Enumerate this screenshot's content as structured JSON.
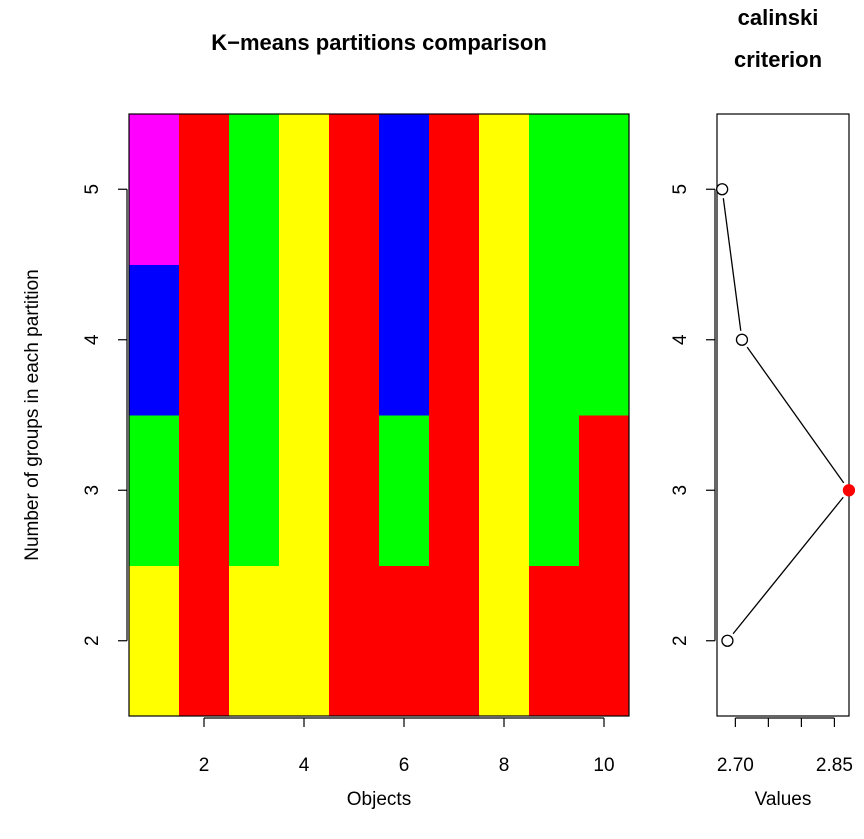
{
  "chart_data": [
    {
      "type": "heatmap",
      "title": "K−means partitions comparison",
      "xlabel": "Objects",
      "ylabel": "Number of groups in each partition",
      "x_categories": [
        1,
        2,
        3,
        4,
        5,
        6,
        7,
        8,
        9,
        10
      ],
      "y_categories": [
        2,
        3,
        4,
        5
      ],
      "x_tick_labels": [
        "2",
        "4",
        "6",
        "8",
        "10"
      ],
      "y_tick_labels": [
        "2",
        "3",
        "4",
        "5"
      ],
      "palette": {
        "1": "#FF0000",
        "2": "#FFFF00",
        "3": "#00FF00",
        "4": "#0000FF",
        "5": "#FF00FF"
      },
      "rows": [
        {
          "groups": 2,
          "values": [
            2,
            1,
            2,
            2,
            1,
            1,
            1,
            2,
            1,
            1
          ]
        },
        {
          "groups": 3,
          "values": [
            3,
            1,
            3,
            2,
            1,
            3,
            1,
            2,
            3,
            1
          ]
        },
        {
          "groups": 4,
          "values": [
            4,
            1,
            3,
            2,
            1,
            4,
            1,
            2,
            3,
            3
          ]
        },
        {
          "groups": 5,
          "values": [
            5,
            1,
            3,
            2,
            1,
            4,
            1,
            2,
            3,
            3
          ]
        }
      ]
    },
    {
      "type": "scatter",
      "title": "calinski criterion",
      "title_lines": [
        "calinski",
        "criterion"
      ],
      "xlabel": "Values",
      "ylabel": "",
      "x_tick_labels": [
        "2.70",
        "2.85"
      ],
      "x_ticks": [
        2.7,
        2.75,
        2.8,
        2.85
      ],
      "xlim": [
        2.6722,
        2.8721
      ],
      "ylim": [
        1.5,
        5.5
      ],
      "y_tick_labels": [
        "2",
        "3",
        "4",
        "5"
      ],
      "points": [
        {
          "x": 2.688,
          "y": 2
        },
        {
          "x": 2.872,
          "y": 3,
          "highlight": true
        },
        {
          "x": 2.71,
          "y": 4
        },
        {
          "x": 2.68,
          "y": 5
        }
      ],
      "highlight_color": "#FF0000"
    }
  ]
}
